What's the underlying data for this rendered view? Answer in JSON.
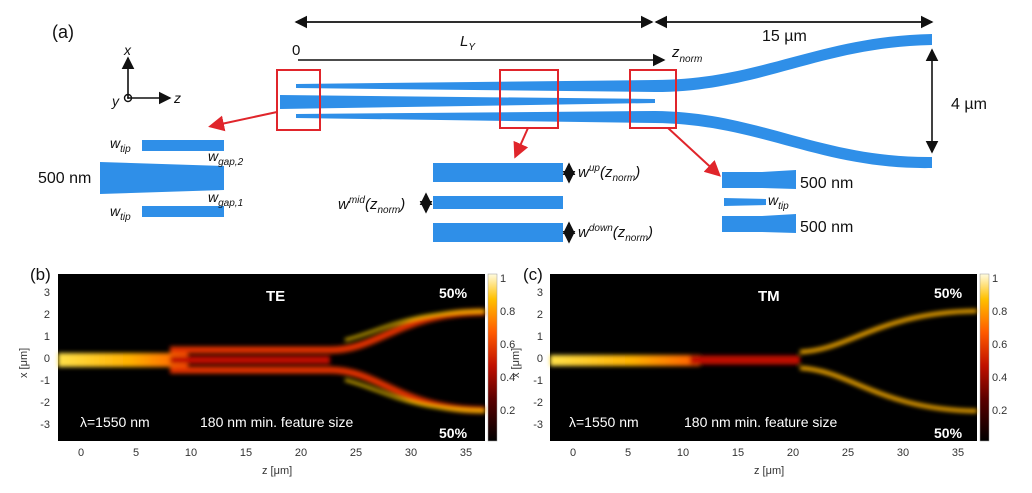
{
  "panel_a": {
    "label": "(a)",
    "origin_label": "0",
    "ly_label": "L_Y",
    "znorm_label": "z_norm",
    "taper_length_label": "15 µm",
    "separation_label": "4 µm",
    "axes": {
      "x": "x",
      "y": "y",
      "z": "z"
    },
    "left_inset": {
      "width_label": "500 nm",
      "wtip": "w_tip",
      "wgap2": "w_gap,2",
      "wgap1": "w_gap,1"
    },
    "middle_inset": {
      "wup": "w^up(z_norm)",
      "wmid": "w^mid(z_norm)",
      "wdown": "w^down(z_norm)"
    },
    "right_inset": {
      "top_width": "500 nm",
      "wtip": "w_tip",
      "bottom_width": "500 nm"
    }
  },
  "panels": [
    {
      "label": "(b)",
      "mode": "TE",
      "top_output": "50%",
      "bottom_output": "50%",
      "wavelength": "λ=1550 nm",
      "feature": "180 nm min. feature size",
      "xlabel": "z [μm]",
      "ylabel": "x [μm]",
      "xticks": [
        "0",
        "5",
        "10",
        "15",
        "20",
        "25",
        "30",
        "35"
      ],
      "yticks": [
        "3",
        "2",
        "1",
        "0",
        "-1",
        "-2",
        "-3"
      ],
      "cbticks": [
        "1",
        "0.8",
        "0.6",
        "0.4",
        "0.2"
      ]
    },
    {
      "label": "(c)",
      "mode": "TM",
      "top_output": "50%",
      "bottom_output": "50%",
      "wavelength": "λ=1550 nm",
      "feature": "180 nm min. feature size",
      "xlabel": "z [μm]",
      "ylabel": "x [μm]",
      "xticks": [
        "0",
        "5",
        "10",
        "15",
        "20",
        "25",
        "30",
        "35"
      ],
      "yticks": [
        "3",
        "2",
        "1",
        "0",
        "-1",
        "-2",
        "-3"
      ],
      "cbticks": [
        "1",
        "0.8",
        "0.6",
        "0.4",
        "0.2"
      ]
    }
  ],
  "colors": {
    "waveguide": "#2f8fe8",
    "highlight_box": "#e0252b",
    "field_background": "#000000"
  }
}
